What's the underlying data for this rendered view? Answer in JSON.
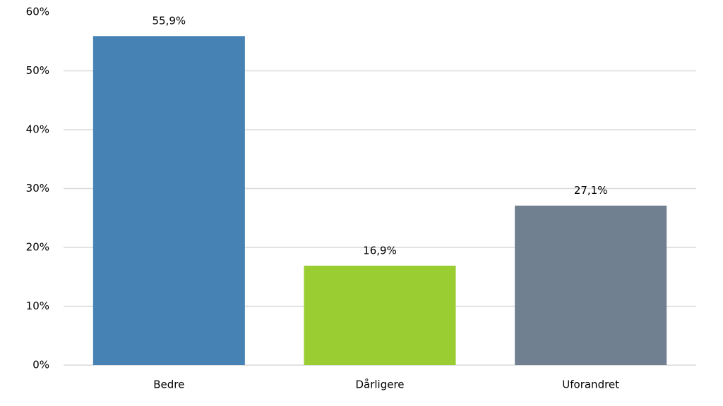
{
  "chart_data": {
    "type": "bar",
    "categories": [
      "Bedre",
      "Dårligere",
      "Uforandret"
    ],
    "values": [
      55.9,
      16.9,
      27.1
    ],
    "value_labels": [
      "55,9%",
      "16,9%",
      "27,1%"
    ],
    "colors": [
      "#4682b4",
      "#9acd32",
      "#708090"
    ],
    "ylim": [
      0,
      60
    ],
    "yticks": [
      {
        "value": 0,
        "label": "0%"
      },
      {
        "value": 10,
        "label": "10%"
      },
      {
        "value": 20,
        "label": "20%"
      },
      {
        "value": 30,
        "label": "30%"
      },
      {
        "value": 40,
        "label": "40%"
      },
      {
        "value": 50,
        "label": "50%"
      },
      {
        "value": 60,
        "label": "60%"
      }
    ],
    "grid": true
  }
}
